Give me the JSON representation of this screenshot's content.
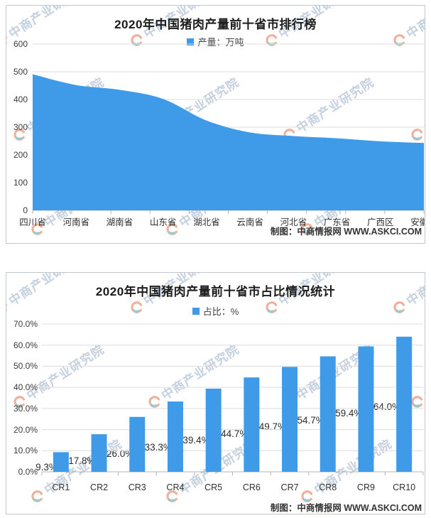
{
  "watermark": {
    "text": "中商产业研究院"
  },
  "colors": {
    "series_blue": "#3F9AE8",
    "grid": "#dcdcdc",
    "axis": "#b3b3b3",
    "title_text": "#1c1c1c",
    "watermark_logo_orange": "#e2714d",
    "watermark_logo_teal": "#3fa3ae"
  },
  "chart_data": [
    {
      "type": "area",
      "title": "2020年中国猪肉产量前十省市排行榜",
      "legend": "产量：万吨",
      "categories": [
        "四川省",
        "河南省",
        "湖南省",
        "山东省",
        "湖北省",
        "云南省",
        "河北省",
        "广东省",
        "广西区",
        "安徽省"
      ],
      "values": [
        491,
        452,
        435,
        402,
        324,
        281,
        268,
        260,
        249,
        243
      ],
      "ylim": [
        0,
        600
      ],
      "yticks": [
        "0",
        "100",
        "200",
        "300",
        "400",
        "500",
        "600"
      ],
      "grid": true,
      "legend_position": "top",
      "credit": "制图：中商情报网 WWW.ASKCI.COM"
    },
    {
      "type": "bar",
      "title": "2020年中国猪肉产量前十省市占比情况统计",
      "legend": "占比：%",
      "categories": [
        "CR1",
        "CR2",
        "CR3",
        "CR4",
        "CR5",
        "CR6",
        "CR7",
        "CR8",
        "CR9",
        "CR10"
      ],
      "values": [
        9.3,
        17.8,
        26.0,
        33.3,
        39.4,
        44.7,
        49.7,
        54.7,
        59.4,
        64.0
      ],
      "data_labels": [
        "9.3%",
        "17.8%",
        "26.0%",
        "33.3%",
        "39.4%",
        "44.7%",
        "49.7%",
        "54.7%",
        "59.4%",
        "64.0%"
      ],
      "ylim": [
        0,
        70
      ],
      "yticks": [
        "0.0%",
        "10.0%",
        "20.0%",
        "30.0%",
        "40.0%",
        "50.0%",
        "60.0%",
        "70.0%"
      ],
      "grid": true,
      "legend_position": "top",
      "credit": "制图：中商情报网 WWW.ASKCI.COM"
    }
  ]
}
